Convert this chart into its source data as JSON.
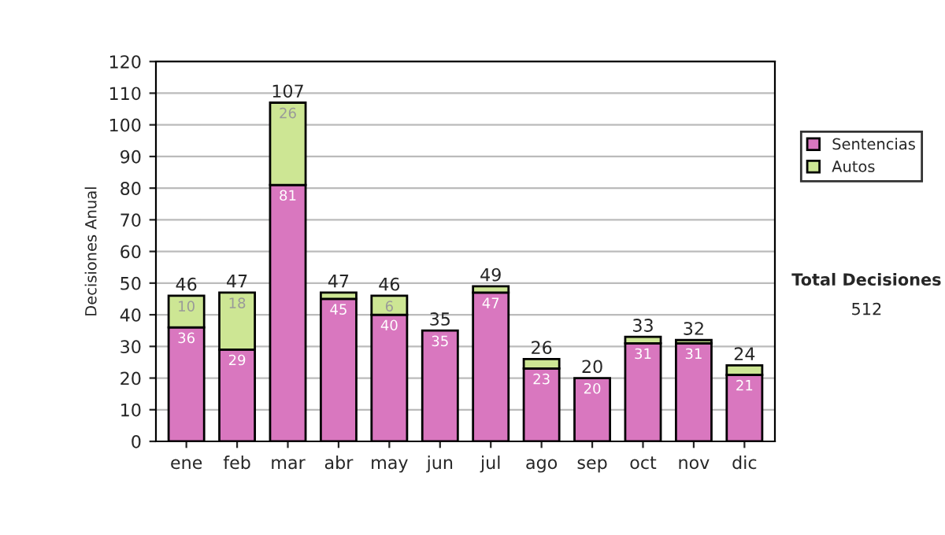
{
  "chart_data": {
    "type": "bar",
    "stacked": true,
    "ylabel": "Decisiones Anual",
    "categories": [
      "ene",
      "feb",
      "mar",
      "abr",
      "may",
      "jun",
      "jul",
      "ago",
      "sep",
      "oct",
      "nov",
      "dic"
    ],
    "series": [
      {
        "name": "Sentencias",
        "color": "#d977bf",
        "values": [
          36,
          29,
          81,
          45,
          40,
          35,
          47,
          23,
          20,
          31,
          31,
          21
        ],
        "value_labels": [
          "36",
          "29",
          "81",
          "45",
          "40",
          "35",
          "47",
          "23",
          "20",
          "31",
          "31",
          "21"
        ]
      },
      {
        "name": "Autos",
        "color": "#cde694",
        "values": [
          10,
          18,
          26,
          2,
          6,
          null,
          2,
          3,
          null,
          2,
          1,
          3
        ],
        "value_labels": [
          "10",
          "18",
          "26",
          null,
          "6",
          null,
          null,
          null,
          null,
          null,
          null,
          null
        ]
      }
    ],
    "totals": [
      "46",
      "47",
      "107",
      "47",
      "46",
      "35",
      "49",
      "26",
      "20",
      "33",
      "32",
      "24"
    ],
    "ylim": [
      0,
      120
    ],
    "yticks": [
      0,
      10,
      20,
      30,
      40,
      50,
      60,
      70,
      80,
      90,
      100,
      110,
      120
    ],
    "grid": "y",
    "legend": "right",
    "annotations": [
      "Total Decisiones",
      "512"
    ]
  }
}
